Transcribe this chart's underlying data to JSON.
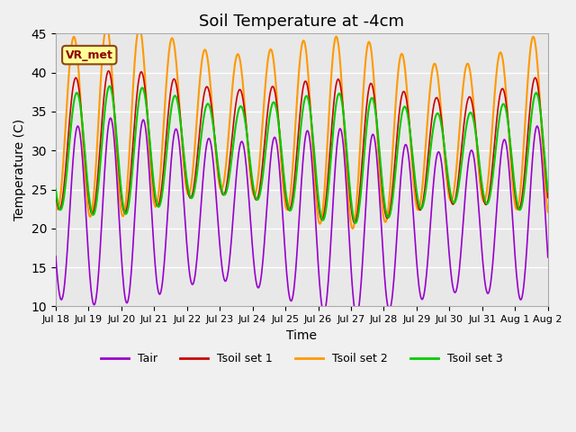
{
  "title": "Soil Temperature at -4cm",
  "xlabel": "Time",
  "ylabel": "Temperature (C)",
  "ylim": [
    10,
    45
  ],
  "annotation": "VR_met",
  "legend_labels": [
    "Tair",
    "Tsoil set 1",
    "Tsoil set 2",
    "Tsoil set 3"
  ],
  "legend_colors": [
    "#9900cc",
    "#cc0000",
    "#ff9900",
    "#00cc00"
  ],
  "line_colors": [
    "#9900cc",
    "#cc0000",
    "#ff9900",
    "#00cc00"
  ],
  "xtick_labels": [
    "Jul 18",
    "Jul 19",
    "Jul 20",
    "Jul 21",
    "Jul 22",
    "Jul 23",
    "Jul 24",
    "Jul 25",
    "Jul 26",
    "Jul 27",
    "Jul 28",
    "Jul 29",
    "Jul 30",
    "Jul 31",
    "Aug 1",
    "Aug 2"
  ],
  "background_color": "#e8e8e8",
  "fig_bg_color": "#f0f0f0",
  "grid_color": "#ffffff",
  "title_fontsize": 13,
  "yticks": [
    10,
    15,
    20,
    25,
    30,
    35,
    40,
    45
  ],
  "n_days": 16
}
